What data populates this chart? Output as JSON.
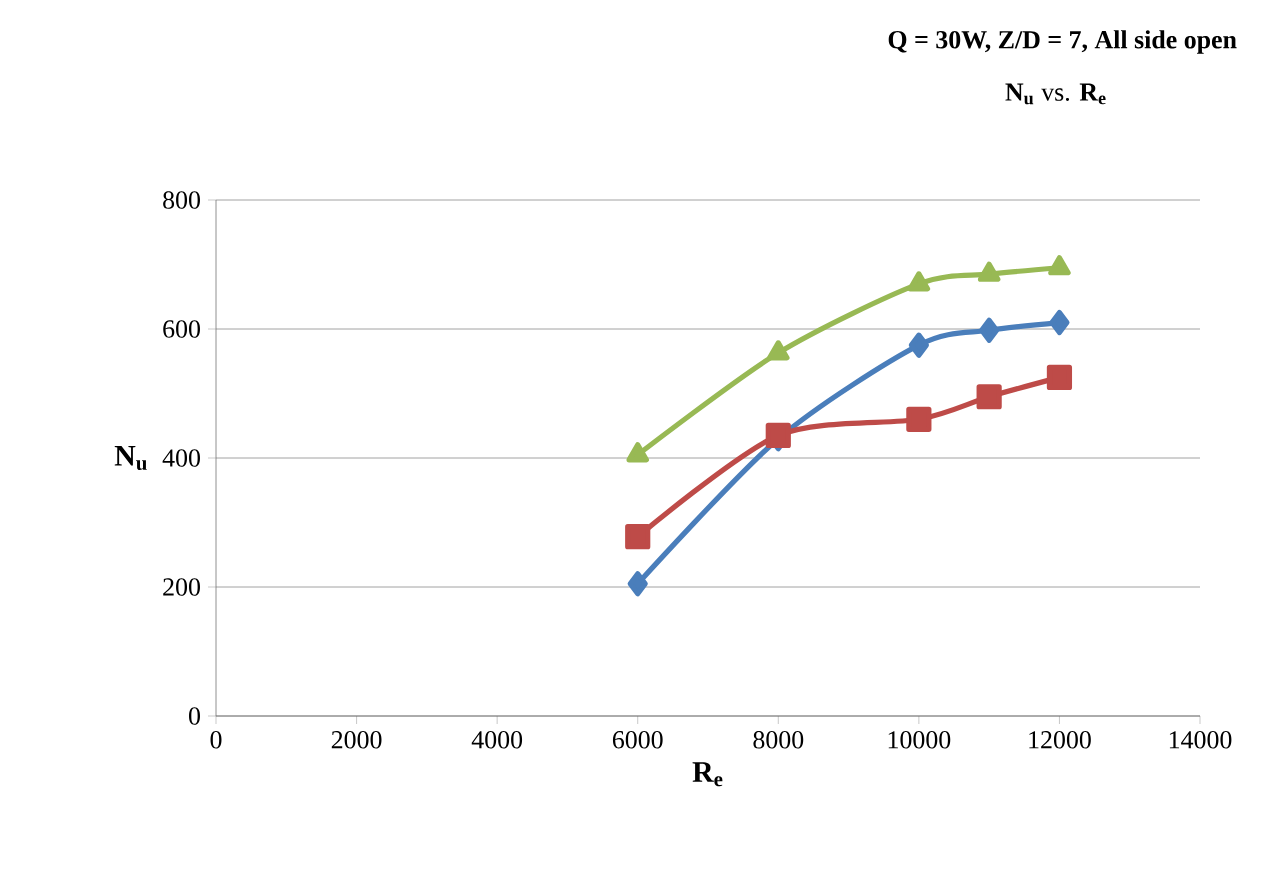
{
  "chart_data": {
    "type": "line",
    "title": "Q = 30W, Z/D = 7, All side open",
    "subtitle": "**N$_{u}$** vs. **R$_{e}$**",
    "xlabel": "R$_{e}$",
    "ylabel": "N$_{u}$",
    "x": [
      6000,
      8000,
      10000,
      11000,
      12000
    ],
    "series": [
      {
        "color": "#4a7ebb",
        "marker": "diamond",
        "values": [
          205,
          430,
          575,
          598,
          610
        ]
      },
      {
        "color": "#be4b48",
        "marker": "square",
        "values": [
          278,
          435,
          460,
          495,
          525
        ]
      },
      {
        "color": "#98b954",
        "marker": "triangle",
        "values": [
          405,
          563,
          670,
          685,
          695
        ]
      }
    ],
    "xlim": [
      0,
      14000
    ],
    "xticks": [
      0,
      2000,
      4000,
      6000,
      8000,
      10000,
      12000,
      14000
    ],
    "ylim": [
      0,
      800
    ],
    "yticks": [
      0,
      200,
      400,
      600,
      800
    ],
    "grid": "y"
  }
}
